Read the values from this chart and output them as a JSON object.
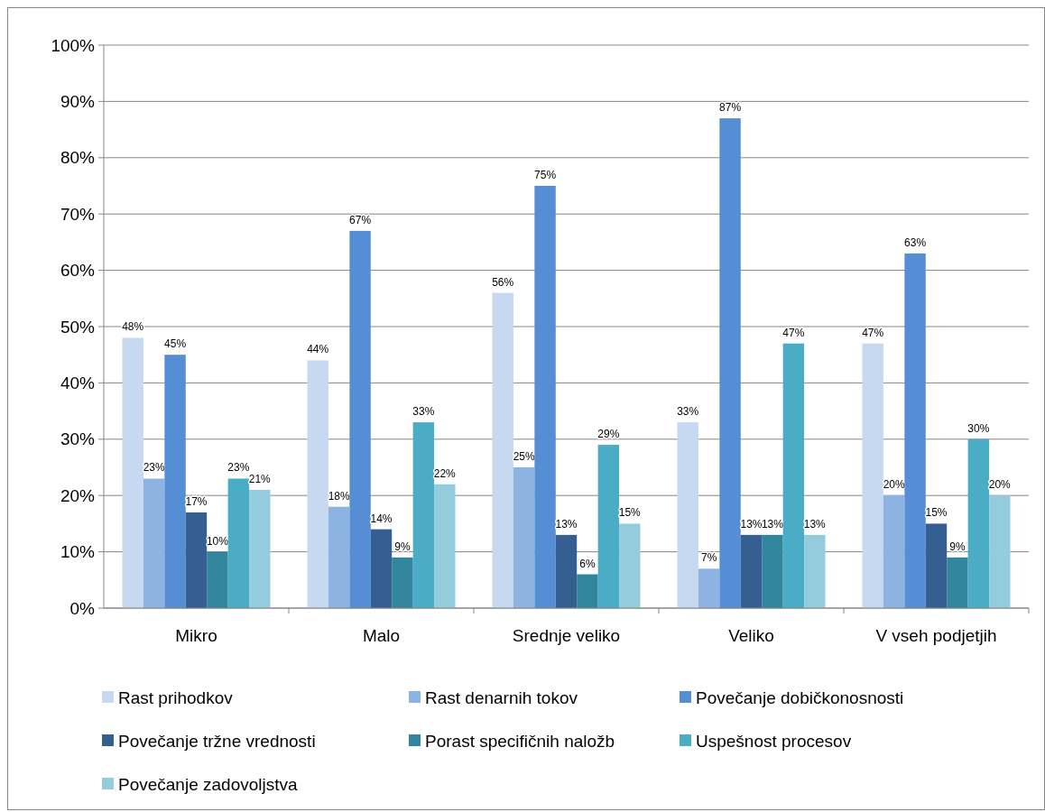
{
  "chart_data": {
    "type": "bar",
    "categories": [
      "Mikro",
      "Malo",
      "Srednje veliko",
      "Veliko",
      "V vseh podjetjih"
    ],
    "series": [
      {
        "name": "Rast prihodkov",
        "color": "#c6d9f1",
        "values": [
          48,
          44,
          56,
          33,
          47
        ],
        "value_labels": [
          "48%",
          "44%",
          "56%",
          "33%",
          "47%"
        ]
      },
      {
        "name": "Rast denarnih tokov",
        "color": "#8db3e2",
        "values": [
          23,
          18,
          25,
          7,
          20
        ],
        "value_labels": [
          "23%",
          "18%",
          "25%",
          "7%",
          "20%"
        ]
      },
      {
        "name": "Povečanje dobičkonosnosti",
        "color": "#558ed5",
        "values": [
          45,
          67,
          75,
          87,
          63
        ],
        "value_labels": [
          "45%",
          "67%",
          "75%",
          "87%",
          "63%"
        ]
      },
      {
        "name": "Povečanje tržne vrednosti",
        "color": "#355f91",
        "values": [
          17,
          14,
          13,
          13,
          15
        ],
        "value_labels": [
          "17%",
          "14%",
          "13%",
          "13%",
          "15%"
        ]
      },
      {
        "name": "Porast specifičnih naložb",
        "color": "#31859c",
        "values": [
          10,
          9,
          6,
          13,
          9
        ],
        "value_labels": [
          "10%",
          "9%",
          "6%",
          "13%",
          "9%"
        ]
      },
      {
        "name": "Uspešnost procesov",
        "color": "#4bacc6",
        "values": [
          23,
          33,
          29,
          47,
          30
        ],
        "value_labels": [
          "23%",
          "33%",
          "29%",
          "47%",
          "30%"
        ]
      },
      {
        "name": "Povečanje zadovoljstva",
        "color": "#93cddd",
        "values": [
          21,
          22,
          15,
          13,
          20
        ],
        "value_labels": [
          "21%",
          "22%",
          "15%",
          "13%",
          "20%"
        ]
      }
    ],
    "ylim": [
      0,
      100
    ],
    "yticks": [
      {
        "value": 0,
        "label": "0%"
      },
      {
        "value": 10,
        "label": "10%"
      },
      {
        "value": 20,
        "label": "20%"
      },
      {
        "value": 30,
        "label": "30%"
      },
      {
        "value": 40,
        "label": "40%"
      },
      {
        "value": 50,
        "label": "50%"
      },
      {
        "value": 60,
        "label": "60%"
      },
      {
        "value": 70,
        "label": "70%"
      },
      {
        "value": 80,
        "label": "80%"
      },
      {
        "value": 90,
        "label": "90%"
      },
      {
        "value": 100,
        "label": "100%"
      }
    ],
    "grid": "y",
    "legend": "bottom"
  }
}
